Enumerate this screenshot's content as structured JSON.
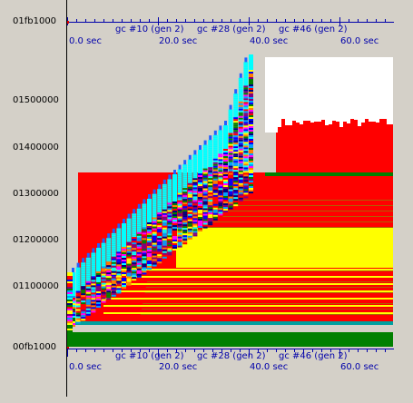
{
  "y_axis": {
    "labels": [
      "01fb1000",
      "01500000",
      "01400000",
      "01300000",
      "01200000",
      "01100000",
      "00fb1000"
    ]
  },
  "timeline": {
    "gc_labels": [
      "gc #10 (gen 2)",
      "gc #28 (gen 2)",
      "gc #46 (gen 2)"
    ],
    "time_labels": [
      "0.0 sec",
      "20.0 sec",
      "40.0 sec",
      "60.0 sec"
    ]
  },
  "colors": {
    "background": "#d4d0c8",
    "axis_blue": "#0000aa",
    "red": "#ff0000",
    "yellow": "#ffff00",
    "green": "#008000",
    "cyan": "#00ffff",
    "white": "#ffffff"
  }
}
